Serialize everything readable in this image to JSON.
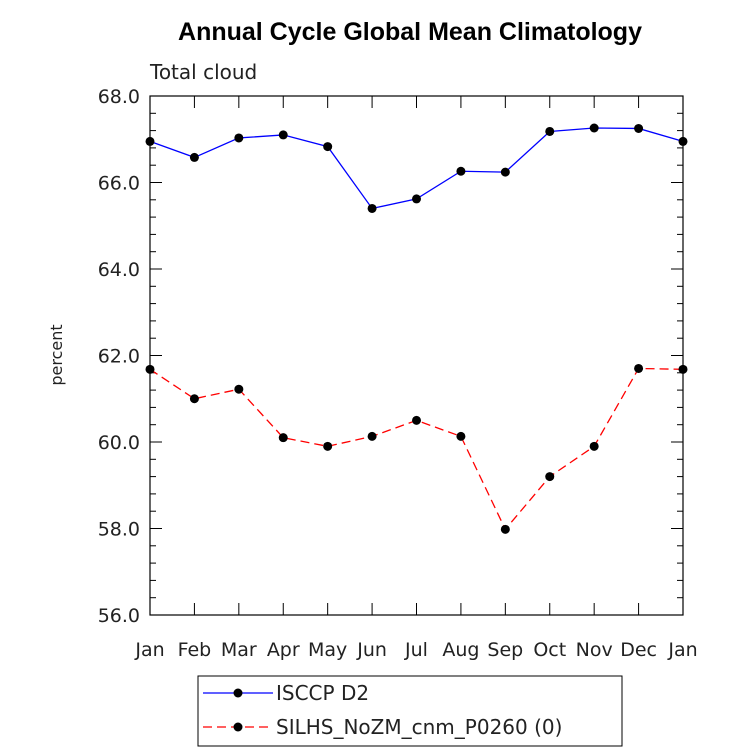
{
  "chart_data": {
    "type": "line",
    "title": "Annual Cycle Global Mean Climatology",
    "subtitle": "Total cloud",
    "xlabel": "",
    "ylabel": "percent",
    "categories": [
      "Jan",
      "Feb",
      "Mar",
      "Apr",
      "May",
      "Jun",
      "Jul",
      "Aug",
      "Sep",
      "Oct",
      "Nov",
      "Dec",
      "Jan"
    ],
    "ylim": [
      56.0,
      68.0
    ],
    "yticks": [
      "56.0",
      "58.0",
      "60.0",
      "62.0",
      "64.0",
      "66.0",
      "68.0"
    ],
    "series": [
      {
        "name": "ISCCP D2",
        "color": "#0000ff",
        "dash": "solid",
        "values": [
          66.95,
          66.58,
          67.03,
          67.1,
          66.83,
          65.4,
          65.62,
          66.26,
          66.24,
          67.18,
          67.26,
          67.25,
          66.95
        ]
      },
      {
        "name": "SILHS_NoZM_cnm_P0260 (0)",
        "color": "#ff0000",
        "dash": "dashed",
        "values": [
          61.68,
          61.0,
          61.22,
          60.1,
          59.9,
          60.13,
          60.5,
          60.13,
          57.98,
          59.2,
          59.9,
          61.7,
          61.68
        ]
      }
    ],
    "legend_position": "bottom"
  }
}
